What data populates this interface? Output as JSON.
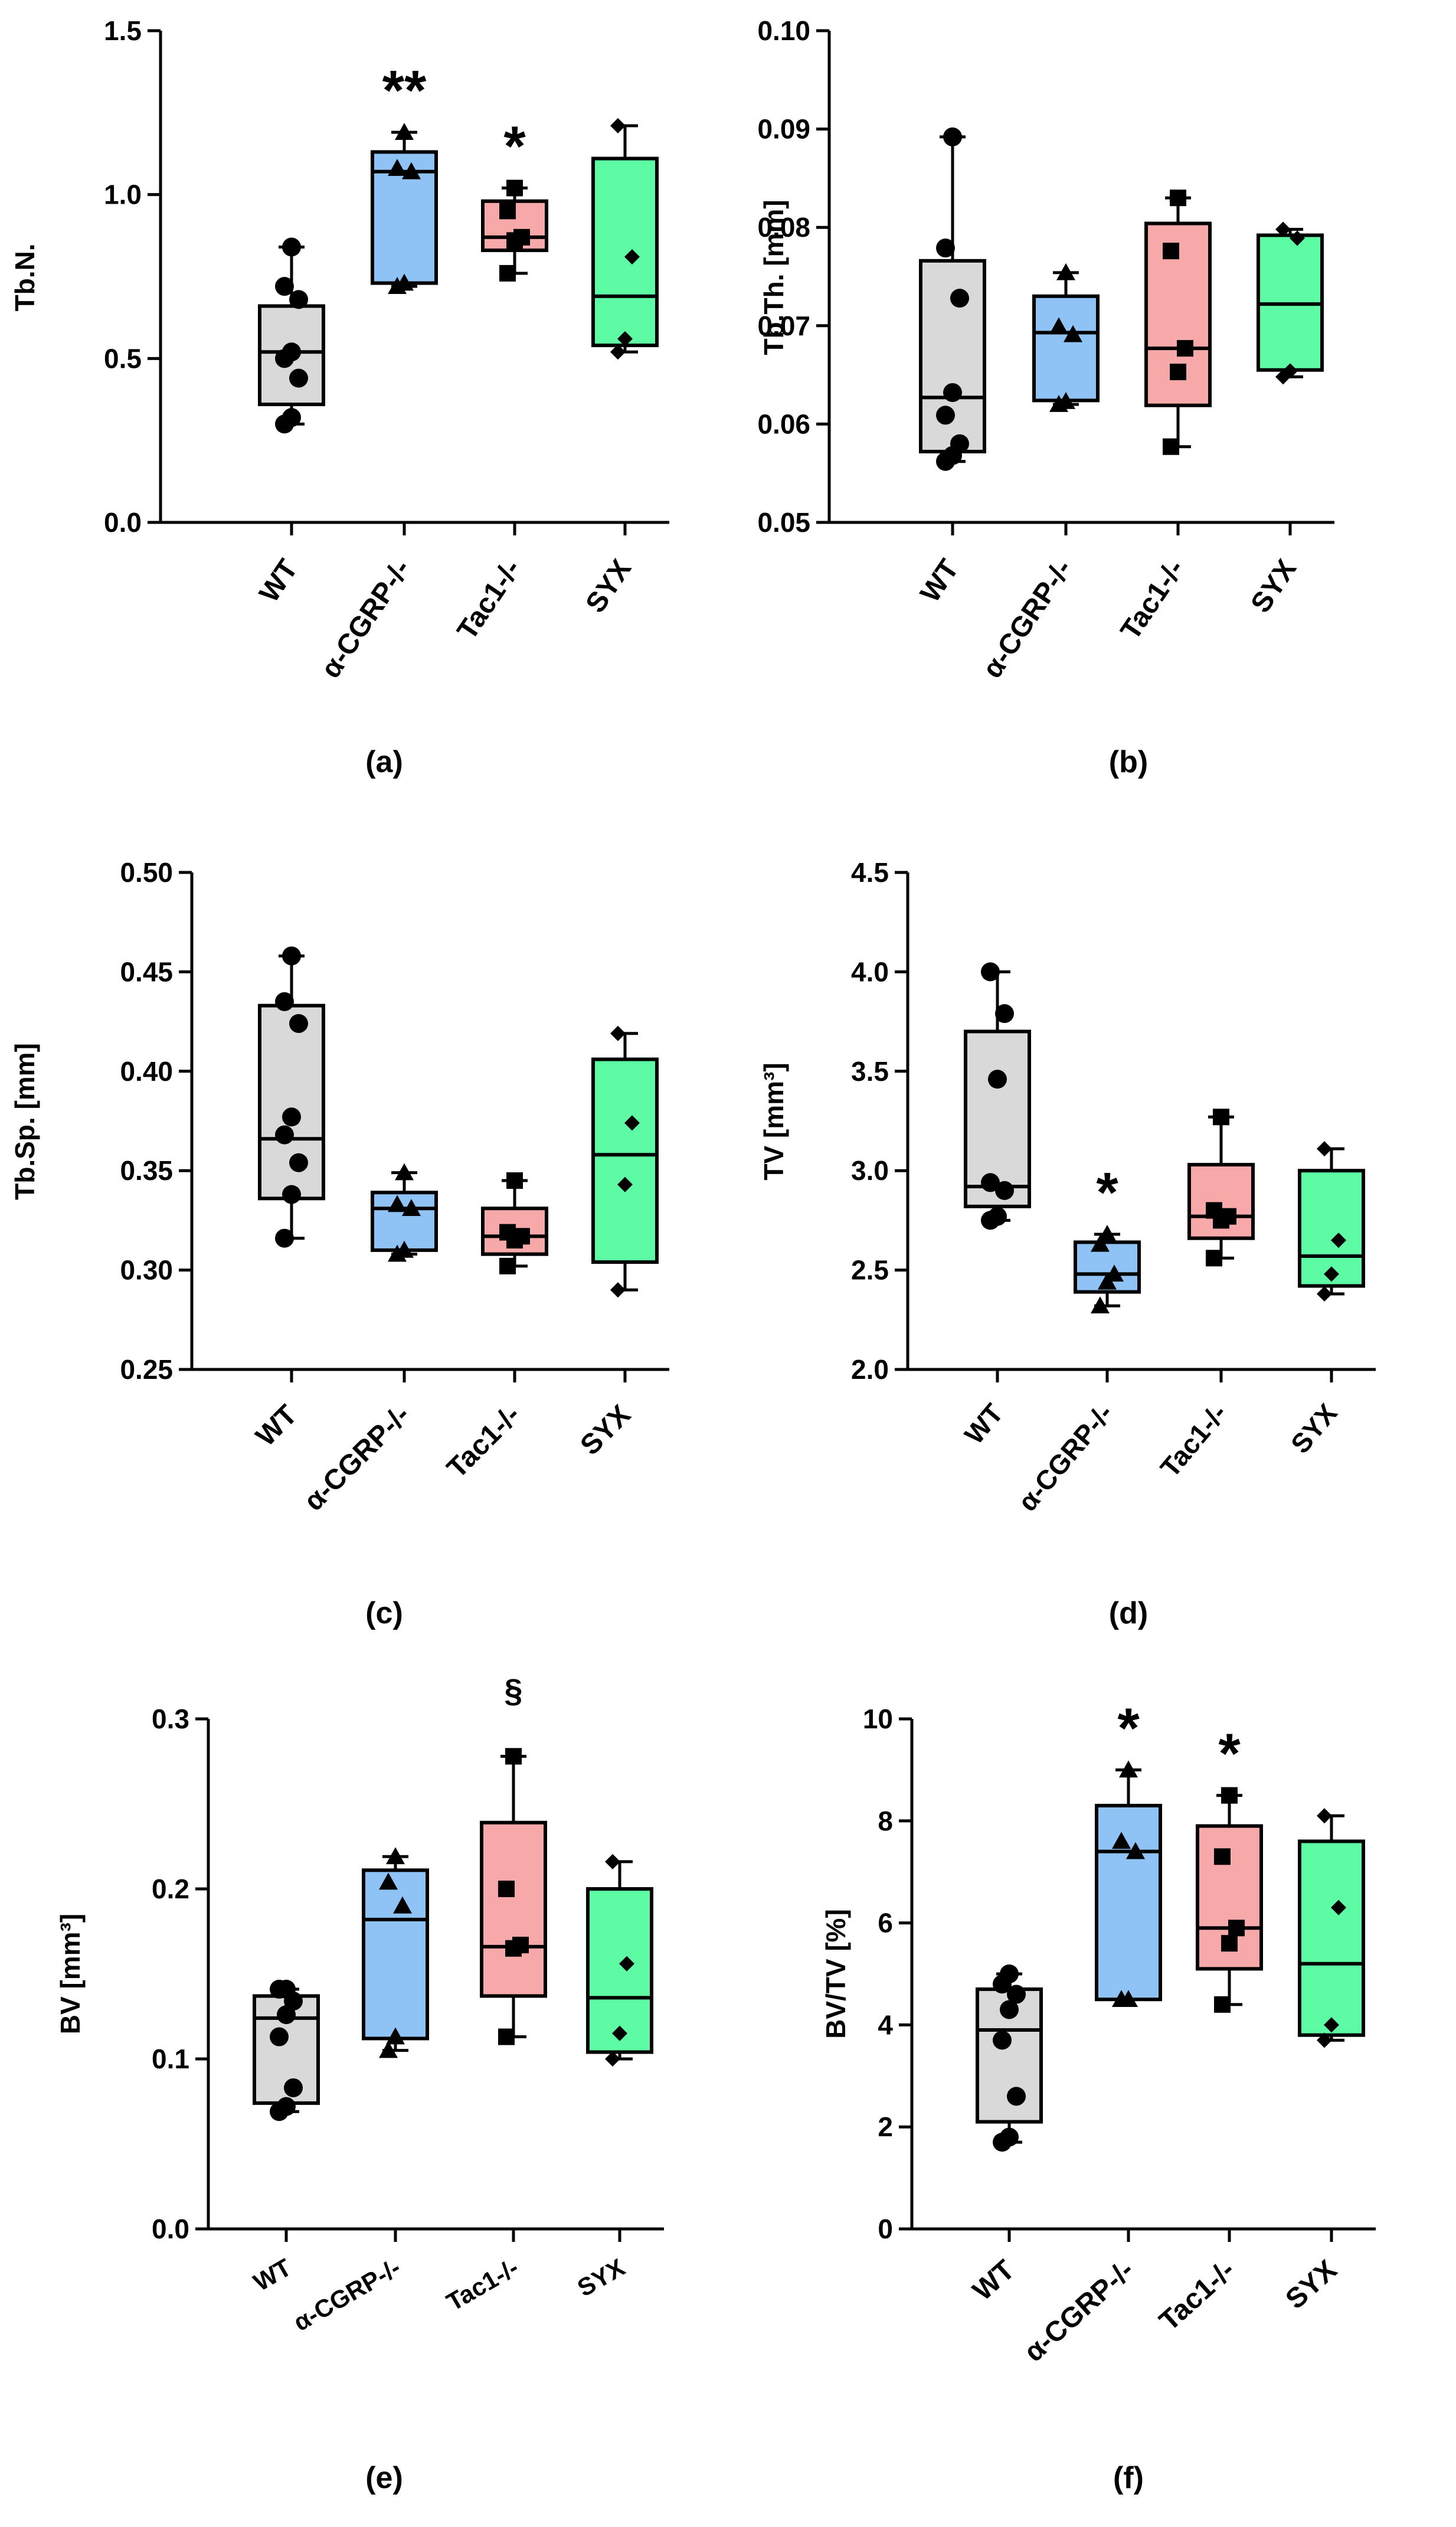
{
  "figure": {
    "category_labels": [
      "WT",
      "α-CGRP-/-",
      "Tac1-/-",
      "SYX"
    ],
    "colors": {
      "WT": "#d9d9d9",
      "α-CGRP-/-": "#8fc3f5",
      "Tac1-/-": "#f7a9a9",
      "SYX": "#5dfba3",
      "stroke": "#000000"
    },
    "marker_shapes": [
      "circle",
      "triangle",
      "square",
      "diamond"
    ]
  },
  "chart_data": [
    {
      "panel": "(a)",
      "type": "boxplot",
      "ylabel": "Tb.N.",
      "ylim": [
        0.0,
        1.5
      ],
      "yticks": [
        "0.0",
        "0.5",
        "1.0",
        "1.5"
      ],
      "categories": [
        "WT",
        "α-CGRP-/-",
        "Tac1-/-",
        "SYX"
      ],
      "boxes": [
        {
          "min": 0.3,
          "q1": 0.36,
          "median": 0.52,
          "q3": 0.66,
          "max": 0.84
        },
        {
          "min": 0.72,
          "q1": 0.73,
          "median": 1.07,
          "q3": 1.13,
          "max": 1.19
        },
        {
          "min": 0.76,
          "q1": 0.83,
          "median": 0.87,
          "q3": 0.98,
          "max": 1.02
        },
        {
          "min": 0.52,
          "q1": 0.54,
          "median": 0.69,
          "q3": 1.11,
          "max": 1.21
        }
      ],
      "points": [
        [
          0.3,
          0.32,
          0.44,
          0.5,
          0.52,
          0.68,
          0.72,
          0.84
        ],
        [
          0.72,
          0.73,
          1.07,
          1.08,
          1.19
        ],
        [
          0.76,
          0.86,
          0.87,
          0.95,
          1.02
        ],
        [
          0.52,
          0.56,
          0.81,
          1.21
        ]
      ],
      "annotations": [
        "",
        "**",
        "*",
        ""
      ]
    },
    {
      "panel": "(b)",
      "type": "boxplot",
      "ylabel": "Tb.Th. [mm]",
      "ylim": [
        0.05,
        0.1
      ],
      "yticks": [
        "0.05",
        "0.06",
        "0.07",
        "0.08",
        "0.09",
        "0.10"
      ],
      "categories": [
        "WT",
        "α-CGRP-/-",
        "Tac1-/-",
        "SYX"
      ],
      "boxes": [
        {
          "min": 0.0562,
          "q1": 0.0572,
          "median": 0.0627,
          "q3": 0.0766,
          "max": 0.0892
        },
        {
          "min": 0.062,
          "q1": 0.0624,
          "median": 0.0693,
          "q3": 0.073,
          "max": 0.0754
        },
        {
          "min": 0.0577,
          "q1": 0.0619,
          "median": 0.0677,
          "q3": 0.0804,
          "max": 0.083
        },
        {
          "min": 0.0648,
          "q1": 0.0655,
          "median": 0.0722,
          "q3": 0.0792,
          "max": 0.0798
        }
      ],
      "points": [
        [
          0.0562,
          0.0568,
          0.058,
          0.0609,
          0.0632,
          0.0728,
          0.0779,
          0.0892
        ],
        [
          0.062,
          0.0623,
          0.0691,
          0.0699,
          0.0754
        ],
        [
          0.0577,
          0.0653,
          0.0677,
          0.0776,
          0.083
        ],
        [
          0.0648,
          0.0654,
          0.0789,
          0.0798
        ]
      ],
      "annotations": [
        "",
        "",
        "",
        ""
      ]
    },
    {
      "panel": "(c)",
      "type": "boxplot",
      "ylabel": "Tb.Sp. [mm]",
      "ylim": [
        0.25,
        0.5
      ],
      "yticks": [
        "0.25",
        "0.30",
        "0.35",
        "0.40",
        "0.45",
        "0.50"
      ],
      "categories": [
        "WT",
        "α-CGRP-/-",
        "Tac1-/-",
        "SYX"
      ],
      "boxes": [
        {
          "min": 0.316,
          "q1": 0.336,
          "median": 0.366,
          "q3": 0.433,
          "max": 0.458
        },
        {
          "min": 0.308,
          "q1": 0.31,
          "median": 0.331,
          "q3": 0.339,
          "max": 0.349
        },
        {
          "min": 0.302,
          "q1": 0.308,
          "median": 0.317,
          "q3": 0.331,
          "max": 0.345
        },
        {
          "min": 0.29,
          "q1": 0.304,
          "median": 0.358,
          "q3": 0.406,
          "max": 0.419
        }
      ],
      "points": [
        [
          0.316,
          0.338,
          0.354,
          0.368,
          0.377,
          0.424,
          0.435,
          0.458
        ],
        [
          0.308,
          0.31,
          0.331,
          0.333,
          0.349
        ],
        [
          0.302,
          0.315,
          0.317,
          0.319,
          0.345
        ],
        [
          0.29,
          0.343,
          0.374,
          0.419
        ]
      ],
      "annotations": [
        "",
        "",
        "",
        ""
      ]
    },
    {
      "panel": "(d)",
      "type": "boxplot",
      "ylabel": "TV [mm³]",
      "ylim": [
        2.0,
        4.5
      ],
      "yticks": [
        "2.0",
        "2.5",
        "3.0",
        "3.5",
        "4.0",
        "4.5"
      ],
      "categories": [
        "WT",
        "α-CGRP-/-",
        "Tac1-/-",
        "SYX"
      ],
      "boxes": [
        {
          "min": 2.75,
          "q1": 2.82,
          "median": 2.92,
          "q3": 3.7,
          "max": 4.0
        },
        {
          "min": 2.32,
          "q1": 2.39,
          "median": 2.48,
          "q3": 2.64,
          "max": 2.68
        },
        {
          "min": 2.56,
          "q1": 2.66,
          "median": 2.77,
          "q3": 3.03,
          "max": 3.27
        },
        {
          "min": 2.38,
          "q1": 2.42,
          "median": 2.57,
          "q3": 3.0,
          "max": 3.11
        }
      ],
      "points": [
        [
          2.75,
          2.77,
          2.9,
          2.94,
          3.46,
          3.79,
          4.0
        ],
        [
          2.32,
          2.44,
          2.48,
          2.63,
          2.68
        ],
        [
          2.56,
          2.75,
          2.77,
          2.8,
          3.27
        ],
        [
          2.38,
          2.48,
          2.65,
          3.11
        ]
      ],
      "annotations": [
        "",
        "*",
        "",
        ""
      ]
    },
    {
      "panel": "(e)",
      "type": "boxplot",
      "ylabel": "BV [mm³]",
      "ylim": [
        0.0,
        0.3
      ],
      "yticks": [
        "0.0",
        "0.1",
        "0.2",
        "0.3"
      ],
      "categories": [
        "WT",
        "α-CGRP-/-",
        "Tac1-/-",
        "SYX"
      ],
      "boxes": [
        {
          "min": 0.069,
          "q1": 0.074,
          "median": 0.124,
          "q3": 0.137,
          "max": 0.141
        },
        {
          "min": 0.105,
          "q1": 0.112,
          "median": 0.182,
          "q3": 0.211,
          "max": 0.219
        },
        {
          "min": 0.113,
          "q1": 0.137,
          "median": 0.166,
          "q3": 0.239,
          "max": 0.278
        },
        {
          "min": 0.1,
          "q1": 0.104,
          "median": 0.136,
          "q3": 0.2,
          "max": 0.216
        }
      ],
      "points": [
        [
          0.069,
          0.072,
          0.083,
          0.113,
          0.126,
          0.134,
          0.141,
          0.141
        ],
        [
          0.105,
          0.113,
          0.19,
          0.204,
          0.219
        ],
        [
          0.113,
          0.165,
          0.167,
          0.2,
          0.278
        ],
        [
          0.1,
          0.115,
          0.156,
          0.216
        ]
      ],
      "annotations": [
        "",
        "",
        "§",
        ""
      ]
    },
    {
      "panel": "(f)",
      "type": "boxplot",
      "ylabel": "BV/TV [%]",
      "ylim": [
        0,
        10
      ],
      "yticks": [
        "0",
        "2",
        "4",
        "6",
        "8",
        "10"
      ],
      "categories": [
        "WT",
        "α-CGRP-/-",
        "Tac1-/-",
        "SYX"
      ],
      "boxes": [
        {
          "min": 1.7,
          "q1": 2.1,
          "median": 3.9,
          "q3": 4.7,
          "max": 5.0
        },
        {
          "min": 4.5,
          "q1": 4.5,
          "median": 7.4,
          "q3": 8.3,
          "max": 9.0
        },
        {
          "min": 4.4,
          "q1": 5.1,
          "median": 5.9,
          "q3": 7.9,
          "max": 8.5
        },
        {
          "min": 3.7,
          "q1": 3.8,
          "median": 5.2,
          "q3": 7.6,
          "max": 8.1
        }
      ],
      "points": [
        [
          1.7,
          1.8,
          2.6,
          3.7,
          4.3,
          4.6,
          4.8,
          5.0
        ],
        [
          4.5,
          4.5,
          7.4,
          7.6,
          9.0
        ],
        [
          4.4,
          5.6,
          5.9,
          7.3,
          8.5
        ],
        [
          3.7,
          4.0,
          6.3,
          8.1
        ]
      ],
      "annotations": [
        "",
        "*",
        "*",
        ""
      ]
    }
  ]
}
